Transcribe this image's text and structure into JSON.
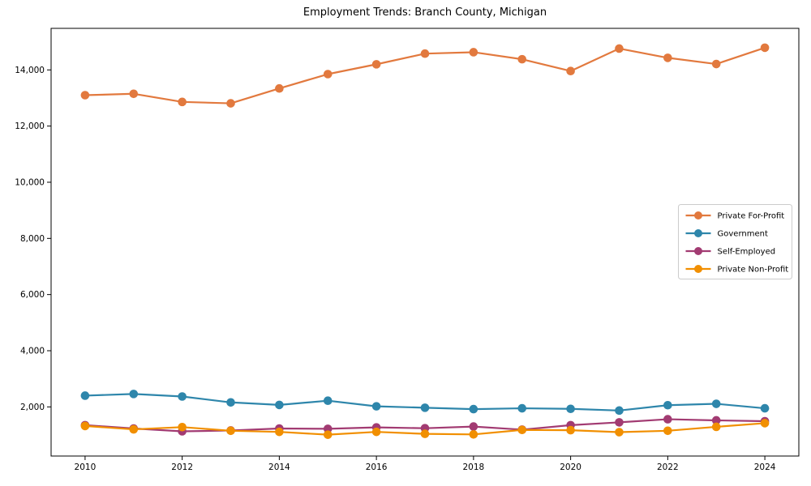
{
  "chart_data": {
    "type": "line",
    "title": "Employment Trends: Branch County, Michigan",
    "xlabel": "",
    "ylabel": "",
    "x": [
      2010,
      2011,
      2012,
      2013,
      2014,
      2015,
      2016,
      2017,
      2018,
      2019,
      2020,
      2021,
      2022,
      2023,
      2024
    ],
    "series": [
      {
        "name": "Private For-Profit",
        "color": "#e2793e",
        "values": [
          13100,
          13150,
          12860,
          12810,
          13340,
          13850,
          14200,
          14580,
          14630,
          14380,
          13960,
          14760,
          14430,
          14210,
          14790
        ]
      },
      {
        "name": "Government",
        "color": "#2e86ab",
        "values": [
          2400,
          2460,
          2370,
          2160,
          2070,
          2220,
          2020,
          1970,
          1920,
          1950,
          1930,
          1870,
          2060,
          2110,
          1950
        ]
      },
      {
        "name": "Self-Employed",
        "color": "#a23b72",
        "values": [
          1350,
          1230,
          1130,
          1160,
          1230,
          1220,
          1270,
          1240,
          1300,
          1190,
          1350,
          1450,
          1560,
          1520,
          1490
        ]
      },
      {
        "name": "Private Non-Profit",
        "color": "#f18f01",
        "values": [
          1320,
          1200,
          1280,
          1150,
          1110,
          1010,
          1110,
          1040,
          1020,
          1180,
          1170,
          1100,
          1150,
          1290,
          1420
        ]
      }
    ],
    "xticks": [
      2010,
      2012,
      2014,
      2016,
      2018,
      2020,
      2022,
      2024
    ],
    "yticks": [
      2000,
      4000,
      6000,
      8000,
      10000,
      12000,
      14000
    ],
    "xlim": [
      2009.3,
      2024.7
    ],
    "ylim": [
      250,
      15480
    ],
    "grid": false,
    "legend_position": "center-right",
    "axis_color": "#000000",
    "legend_border_color": "#cccccc"
  }
}
